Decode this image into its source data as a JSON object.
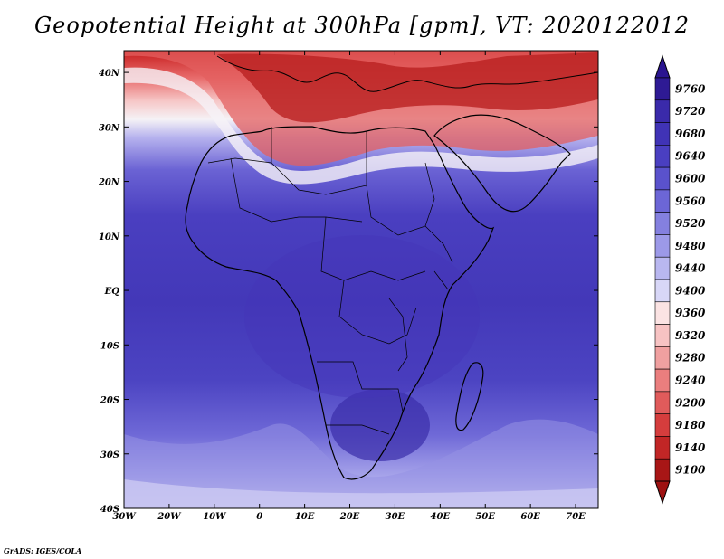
{
  "title": "Geopotential Height at 300hPa [gpm], VT: 2020122012",
  "credit": "GrADS: IGES/COLA",
  "map": {
    "lon_ticks": [
      "30W",
      "20W",
      "10W",
      "0",
      "10E",
      "20E",
      "30E",
      "40E",
      "50E",
      "60E",
      "70E"
    ],
    "lat_ticks": [
      "40N",
      "30N",
      "20N",
      "10N",
      "EQ",
      "10S",
      "20S",
      "30S",
      "40S"
    ],
    "lon_range": [
      -30,
      75
    ],
    "lat_range": [
      -40,
      44
    ],
    "variable": "Geopotential Height",
    "level": "300hPa",
    "units": "gpm",
    "valid_time": "2020122012"
  },
  "colorbar": {
    "levels": [
      "9760",
      "9720",
      "9680",
      "9640",
      "9600",
      "9560",
      "9520",
      "9480",
      "9440",
      "9400",
      "9360",
      "9320",
      "9280",
      "9240",
      "9200",
      "9180",
      "9140",
      "9100"
    ],
    "colors": [
      "#2e1a94",
      "#3a2aaa",
      "#4033b6",
      "#4a3fc1",
      "#5a52cc",
      "#6c66d6",
      "#8480df",
      "#9c99e8",
      "#b9b7f0",
      "#d8d7f7",
      "#fbe3e3",
      "#f7c3c3",
      "#f0a0a0",
      "#ea7e7e",
      "#e05b5b",
      "#d53d3d",
      "#c12626",
      "#a81616"
    ],
    "max_arrow_color": "#2a1490",
    "min_arrow_color": "#9e1111"
  }
}
